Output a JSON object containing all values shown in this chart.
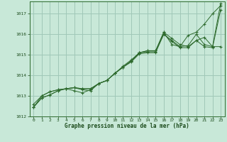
{
  "bg_color": "#c8e8d8",
  "grid_color": "#a0c8b8",
  "line_color": "#2d6a2d",
  "marker_color": "#2d6a2d",
  "xlabel": "Graphe pression niveau de la mer (hPa)",
  "xlabel_color": "#1a4a1a",
  "ylabel_color": "#1a4a1a",
  "xlim": [
    -0.5,
    23.5
  ],
  "ylim": [
    1012,
    1017.6
  ],
  "yticks": [
    1012,
    1013,
    1014,
    1015,
    1016,
    1017
  ],
  "xticks": [
    0,
    1,
    2,
    3,
    4,
    5,
    6,
    7,
    8,
    9,
    10,
    11,
    12,
    13,
    14,
    15,
    16,
    17,
    18,
    19,
    20,
    21,
    22,
    23
  ],
  "series": [
    [
      1012.45,
      1012.9,
      1013.05,
      1013.25,
      1013.35,
      1013.4,
      1013.35,
      1013.35,
      1013.6,
      1013.75,
      1014.1,
      1014.4,
      1014.7,
      1015.1,
      1015.2,
      1015.2,
      1016.1,
      1015.5,
      1015.4,
      1015.95,
      1016.1,
      1016.5,
      1017.0,
      1017.4
    ],
    [
      1012.45,
      1012.9,
      1013.05,
      1013.25,
      1013.35,
      1013.4,
      1013.35,
      1013.35,
      1013.6,
      1013.75,
      1014.1,
      1014.4,
      1014.7,
      1015.1,
      1015.2,
      1015.2,
      1016.0,
      1015.7,
      1015.4,
      1015.45,
      1016.0,
      1015.5,
      1015.4,
      1017.5
    ],
    [
      1012.6,
      1013.0,
      1013.2,
      1013.3,
      1013.35,
      1013.25,
      1013.15,
      1013.3,
      1013.6,
      1013.75,
      1014.1,
      1014.45,
      1014.75,
      1015.1,
      1015.15,
      1015.15,
      1016.1,
      1015.8,
      1015.5,
      1015.4,
      1015.7,
      1015.85,
      1015.4,
      1015.4
    ],
    [
      1012.45,
      1013.0,
      1013.2,
      1013.3,
      1013.35,
      1013.4,
      1013.3,
      1013.25,
      1013.6,
      1013.75,
      1014.1,
      1014.4,
      1014.65,
      1015.05,
      1015.1,
      1015.1,
      1016.0,
      1015.65,
      1015.35,
      1015.35,
      1015.7,
      1015.4,
      1015.35,
      1017.2
    ]
  ]
}
